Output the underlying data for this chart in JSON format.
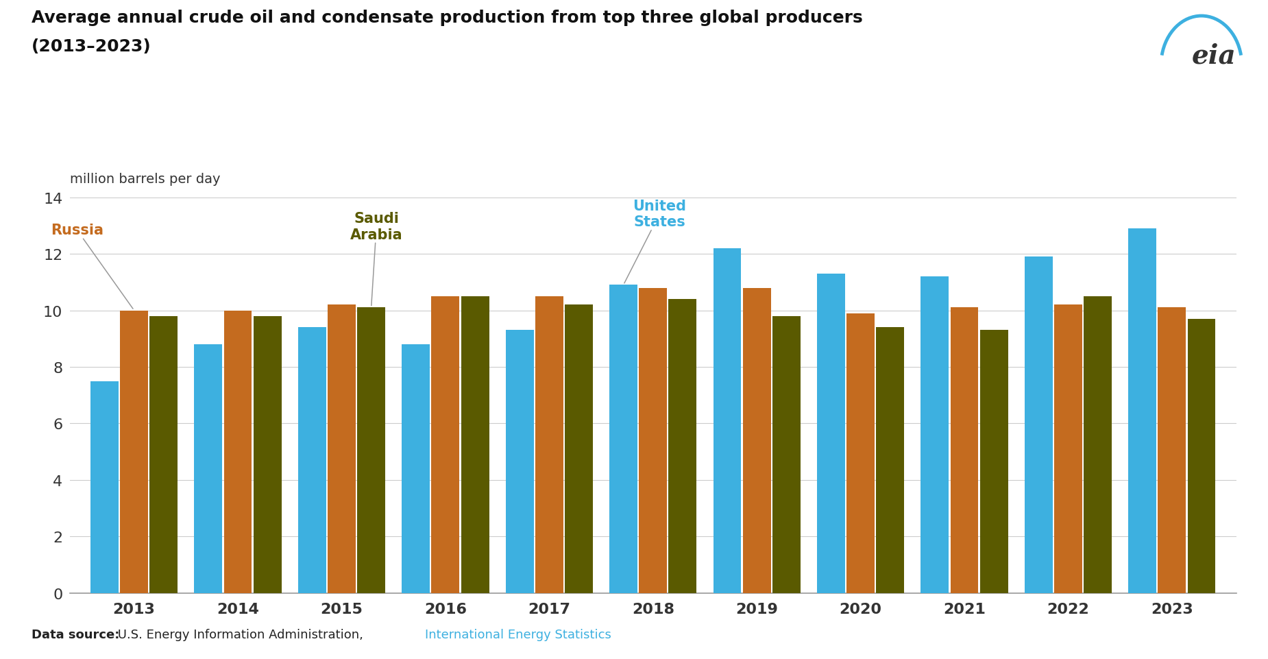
{
  "title_line1": "Average annual crude oil and condensate production from top three global producers",
  "title_line2": "(2013–2023)",
  "ylabel": "million barrels per day",
  "years": [
    2013,
    2014,
    2015,
    2016,
    2017,
    2018,
    2019,
    2020,
    2021,
    2022,
    2023
  ],
  "us_production": [
    7.5,
    8.8,
    9.4,
    8.8,
    9.3,
    10.9,
    12.2,
    11.3,
    11.2,
    11.9,
    12.9
  ],
  "russia_production": [
    10.0,
    10.0,
    10.2,
    10.5,
    10.5,
    10.8,
    10.8,
    9.9,
    10.1,
    10.2,
    10.1
  ],
  "saudi_production": [
    9.8,
    9.8,
    10.1,
    10.5,
    10.2,
    10.4,
    9.8,
    9.4,
    9.3,
    10.5,
    9.7
  ],
  "color_us": "#3db0e0",
  "color_russia": "#c46b1f",
  "color_saudi": "#5a5a00",
  "ylim": [
    0,
    14
  ],
  "yticks": [
    0,
    2,
    4,
    6,
    8,
    10,
    12,
    14
  ],
  "background_color": "#ffffff",
  "text_color": "#333333",
  "data_source_bold": "Data source:",
  "data_source_normal": " U.S. Energy Information Administration, ",
  "data_source_link": "International Energy Statistics",
  "data_source_link_color": "#3db0e0",
  "annotation_russia_year": 2013,
  "annotation_saudi_year": 2015,
  "annotation_us_year": 2018,
  "bar_order": [
    "us",
    "russia",
    "saudi"
  ]
}
